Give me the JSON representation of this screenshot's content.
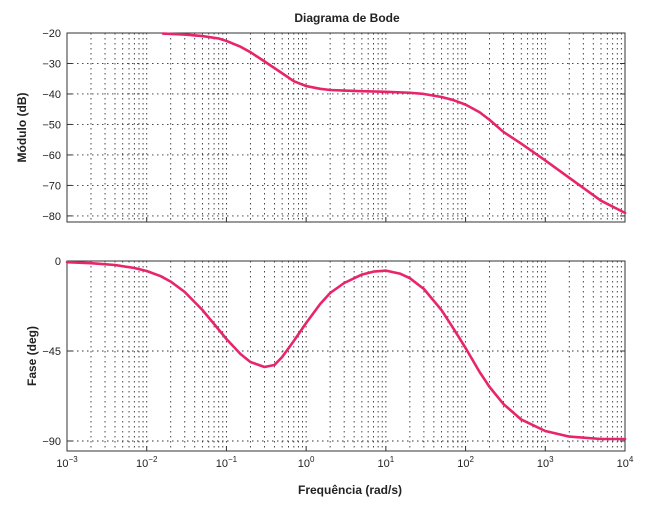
{
  "chart_data": {
    "type": "line",
    "title": "Diagrama de Bode",
    "xlabel": "Frequência (rad/s)",
    "xscale": "log",
    "xlim": [
      0.001,
      10000
    ],
    "xticks": [
      {
        "value": 0.001,
        "base": "10",
        "exp": "−3"
      },
      {
        "value": 0.01,
        "base": "10",
        "exp": "−2"
      },
      {
        "value": 0.1,
        "base": "10",
        "exp": "−1"
      },
      {
        "value": 1,
        "base": "10",
        "exp": "0"
      },
      {
        "value": 10,
        "base": "10",
        "exp": "1"
      },
      {
        "value": 100,
        "base": "10",
        "exp": "2"
      },
      {
        "value": 1000,
        "base": "10",
        "exp": "3"
      },
      {
        "value": 10000,
        "base": "10",
        "exp": "4"
      }
    ],
    "grid": true,
    "color": "#e8246a",
    "panels": [
      {
        "ylabel": "Módulo (dB)",
        "ylim": [
          -82,
          -20
        ],
        "yticks": [
          -20,
          -30,
          -40,
          -50,
          -60,
          -70,
          -80
        ],
        "ytick_labels": [
          "−20",
          "−30",
          "−40",
          "−50",
          "−60",
          "−70",
          "−80"
        ],
        "series": [
          {
            "x": [
              0.016,
              0.03,
              0.05,
              0.08,
              0.1,
              0.15,
              0.2,
              0.3,
              0.5,
              0.7,
              1,
              1.5,
              2,
              3,
              5,
              10,
              20,
              30,
              50,
              70,
              100,
              150,
              200,
              300,
              500,
              1000,
              2000,
              5000,
              10000
            ],
            "y": [
              -20.2,
              -20.5,
              -21,
              -21.8,
              -22.6,
              -24.5,
              -26.3,
              -29.3,
              -33.2,
              -35.8,
              -37.4,
              -38.3,
              -38.7,
              -38.9,
              -39.1,
              -39.3,
              -39.6,
              -40,
              -41,
              -42,
              -43.5,
              -46,
              -48.5,
              -52.5,
              -56.3,
              -61.8,
              -67.5,
              -75,
              -79
            ]
          }
        ]
      },
      {
        "ylabel": "Fase (deg)",
        "ylim": [
          -95,
          0
        ],
        "yticks": [
          0,
          -45,
          -90
        ],
        "ytick_labels": [
          "0",
          "−45",
          "−90"
        ],
        "series": [
          {
            "x": [
              0.001,
              0.002,
              0.004,
              0.007,
              0.01,
              0.015,
              0.02,
              0.03,
              0.05,
              0.07,
              0.1,
              0.15,
              0.2,
              0.3,
              0.4,
              0.5,
              0.7,
              1,
              1.5,
              2,
              3,
              5,
              7,
              10,
              15,
              20,
              30,
              50,
              70,
              100,
              150,
              200,
              300,
              500,
              1000,
              2000,
              5000,
              10000
            ],
            "y": [
              -0.6,
              -1.1,
              -2,
              -3.5,
              -5,
              -7.6,
              -10.3,
              -15.5,
              -24.5,
              -31.5,
              -39,
              -46.5,
              -50.5,
              -53,
              -52,
              -48,
              -40,
              -31,
              -21.5,
              -16,
              -11,
              -6.8,
              -5.3,
              -4.8,
              -6.3,
              -8.6,
              -14,
              -24.6,
              -33.6,
              -43.5,
              -55.5,
              -63,
              -71.6,
              -79.3,
              -85,
              -87.8,
              -89,
              -89
            ]
          }
        ]
      }
    ]
  }
}
